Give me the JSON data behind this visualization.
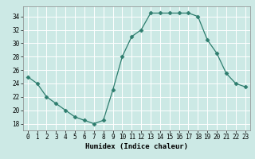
{
  "x": [
    0,
    1,
    2,
    3,
    4,
    5,
    6,
    7,
    8,
    9,
    10,
    11,
    12,
    13,
    14,
    15,
    16,
    17,
    18,
    19,
    20,
    21,
    22,
    23
  ],
  "y": [
    25,
    24,
    22,
    21,
    20,
    19,
    18.5,
    18,
    18.5,
    23,
    28,
    31,
    32,
    34.5,
    34.5,
    34.5,
    34.5,
    34.5,
    34,
    30.5,
    28.5,
    25.5,
    24,
    23.5
  ],
  "line_color": "#2e7d6e",
  "marker": "D",
  "marker_size": 2.5,
  "bg_color": "#cce9e5",
  "grid_color": "#ffffff",
  "xlabel": "Humidex (Indice chaleur)",
  "xlim": [
    -0.5,
    23.5
  ],
  "ylim": [
    17,
    35.5
  ],
  "yticks": [
    18,
    20,
    22,
    24,
    26,
    28,
    30,
    32,
    34
  ],
  "xticks": [
    0,
    1,
    2,
    3,
    4,
    5,
    6,
    7,
    8,
    9,
    10,
    11,
    12,
    13,
    14,
    15,
    16,
    17,
    18,
    19,
    20,
    21,
    22,
    23
  ],
  "label_fontsize": 6.5,
  "tick_fontsize": 5.5
}
